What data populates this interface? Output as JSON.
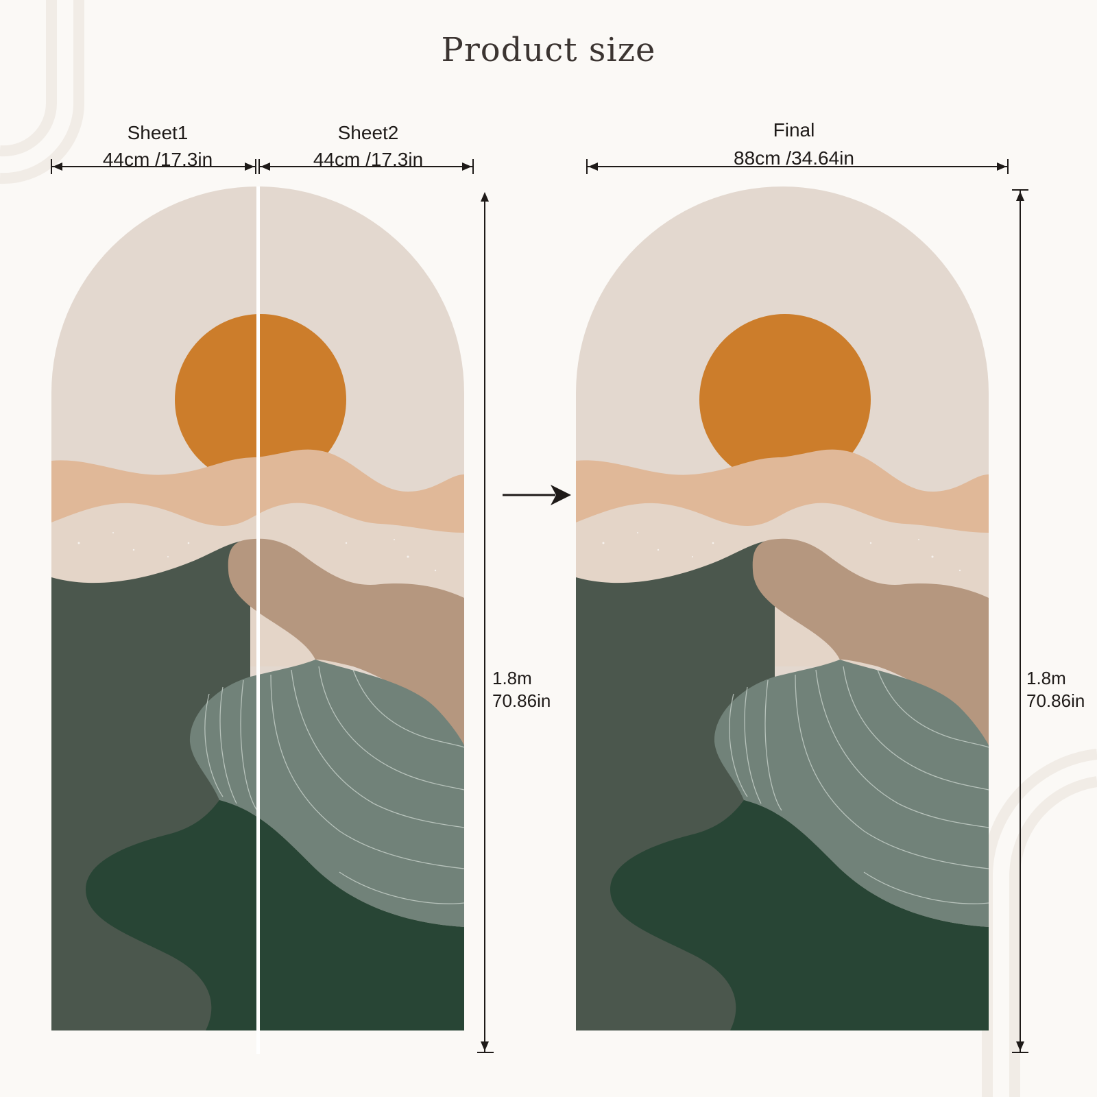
{
  "title": "Product size",
  "sheet1": {
    "name": "Sheet1",
    "width": "44cm /17.3in"
  },
  "sheet2": {
    "name": "Sheet2",
    "width": "44cm /17.3in"
  },
  "final": {
    "name": "Final",
    "width": "88cm /34.64in"
  },
  "height": {
    "metric": "1.8m",
    "imperial": "70.86in"
  },
  "colors": {
    "background": "#fbf9f6",
    "sky": "#e3d8cf",
    "sun": "#cc7d2b",
    "peach": "#e0b898",
    "sand": "#e4d5c8",
    "taupe": "#b5977f",
    "sage": "#718279",
    "grey_green": "#4b574d",
    "dark_green": "#284535"
  }
}
